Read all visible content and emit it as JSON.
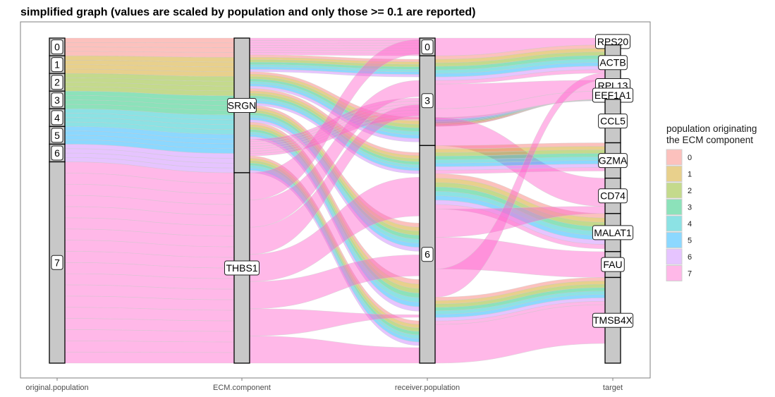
{
  "chart_data": {
    "type": "alluvial",
    "title": "simplified graph (values are scaled by population and only those >= 0.1 are reported)",
    "axes": [
      "original.population",
      "ECM.component",
      "receiver.population",
      "target"
    ],
    "legend": {
      "title_line1": "population originating",
      "title_line2": "the ECM component",
      "position": "right",
      "entries": [
        {
          "label": "0",
          "color": "#F8766D"
        },
        {
          "label": "1",
          "color": "#CD9600"
        },
        {
          "label": "2",
          "color": "#7CAE00"
        },
        {
          "label": "3",
          "color": "#00BE67"
        },
        {
          "label": "4",
          "color": "#00BFC4"
        },
        {
          "label": "5",
          "color": "#00A9FF"
        },
        {
          "label": "6",
          "color": "#C77CFF"
        },
        {
          "label": "7",
          "color": "#FF61CC"
        }
      ]
    },
    "strata": {
      "original.population": [
        {
          "label": "0",
          "value": 0.65
        },
        {
          "label": "1",
          "value": 0.65
        },
        {
          "label": "2",
          "value": 0.65
        },
        {
          "label": "3",
          "value": 0.65
        },
        {
          "label": "4",
          "value": 0.65
        },
        {
          "label": "5",
          "value": 0.65
        },
        {
          "label": "6",
          "value": 0.65
        },
        {
          "label": "7",
          "value": 7.4
        }
      ],
      "ECM.component": [
        {
          "label": "SRGN",
          "value": 4.95
        },
        {
          "label": "THBS1",
          "value": 7.0
        }
      ],
      "receiver.population": [
        {
          "label": "0",
          "value": 0.65
        },
        {
          "label": "3",
          "value": 3.3
        },
        {
          "label": "6",
          "value": 8.0
        }
      ],
      "target": [
        {
          "label": "RPS20",
          "value": 0.25
        },
        {
          "label": "ACTB",
          "value": 1.3
        },
        {
          "label": "RPL13",
          "value": 0.4
        },
        {
          "label": "EEF1A1",
          "value": 0.3
        },
        {
          "label": "CCL5",
          "value": 1.6
        },
        {
          "label": "GZMA",
          "value": 1.3
        },
        {
          "label": "CD74",
          "value": 1.3
        },
        {
          "label": "MALAT1",
          "value": 1.4
        },
        {
          "label": "FAU",
          "value": 0.95
        },
        {
          "label": "TMSB4X",
          "value": 3.15
        }
      ]
    },
    "grid": false
  }
}
